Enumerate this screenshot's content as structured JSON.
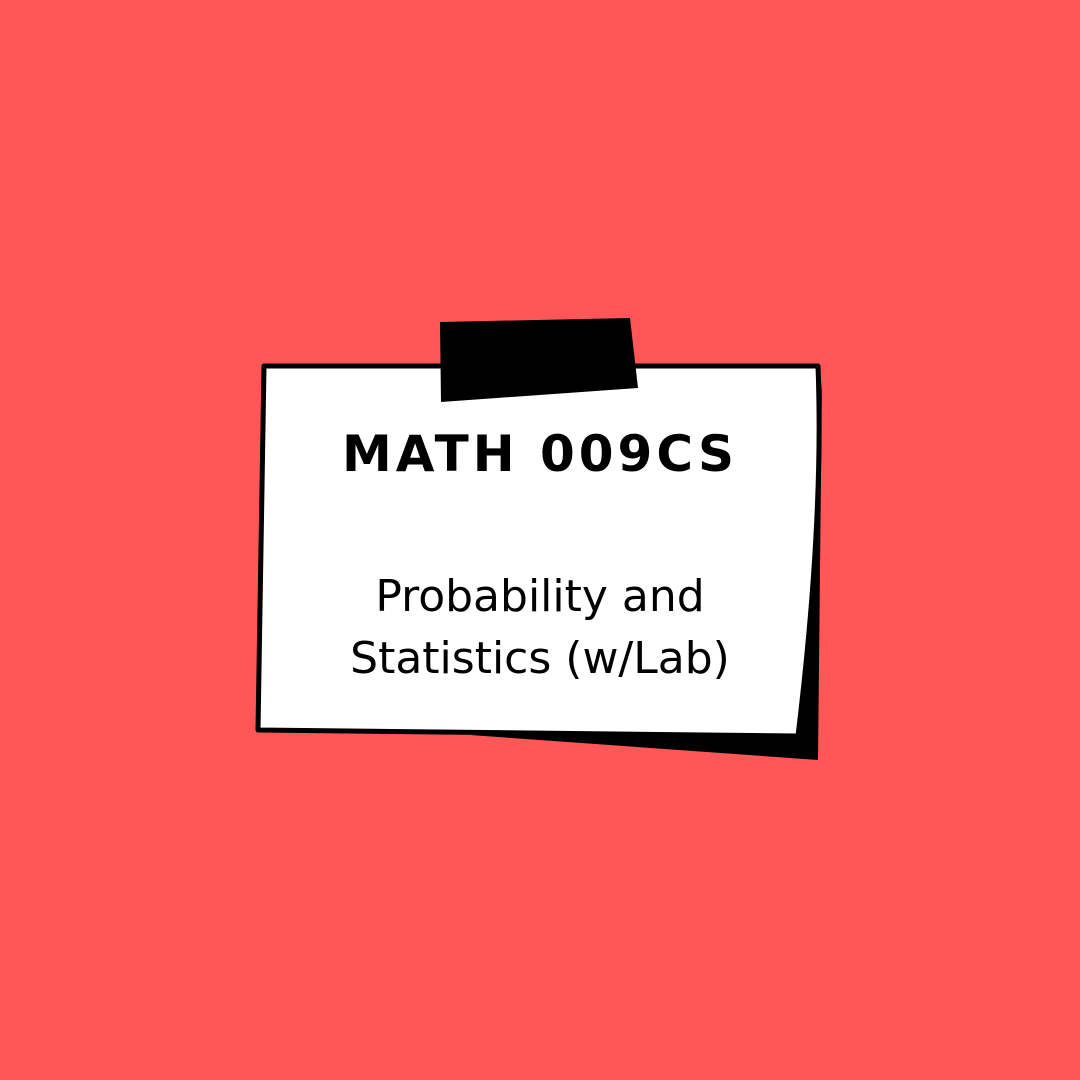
{
  "background_color": "#ff5757",
  "card": {
    "title": "MATH 009CS",
    "subtitle_line1": "Probability and",
    "subtitle_line2": "Statistics (w/Lab)",
    "card_color": "#ffffff",
    "shadow_color": "#000000",
    "tape_color": "#000000"
  }
}
